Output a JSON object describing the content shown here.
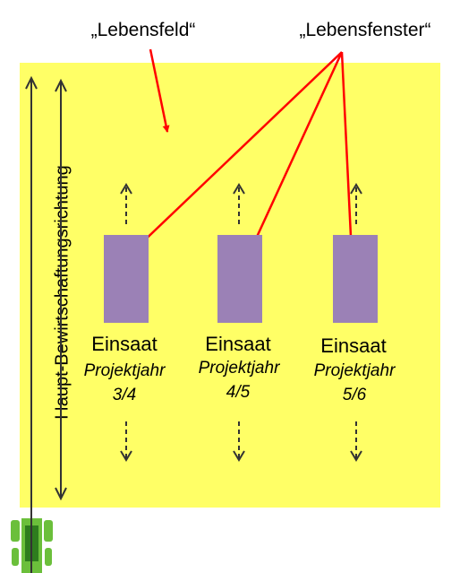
{
  "labels": {
    "lebensfeld": "„Lebensfeld“",
    "lebensfenster": "„Lebensfenster“",
    "direction": "Haupt-Bewirtschaftungsrichtung"
  },
  "windows": [
    {
      "title": "Einsaat",
      "subtitle": "Projektjahr",
      "years": "3/4"
    },
    {
      "title": "Einsaat",
      "subtitle": "Projektjahr",
      "years": "4/5"
    },
    {
      "title": "Einsaat",
      "subtitle": "Projektjahr",
      "years": "5/6"
    }
  ],
  "colors": {
    "field": "#ffff66",
    "window": "#9b81b6",
    "arrow_red": "#ff0000",
    "tractor": "#6bbf3b",
    "tractor_cab": "#2e7d1e",
    "line": "#333333"
  }
}
